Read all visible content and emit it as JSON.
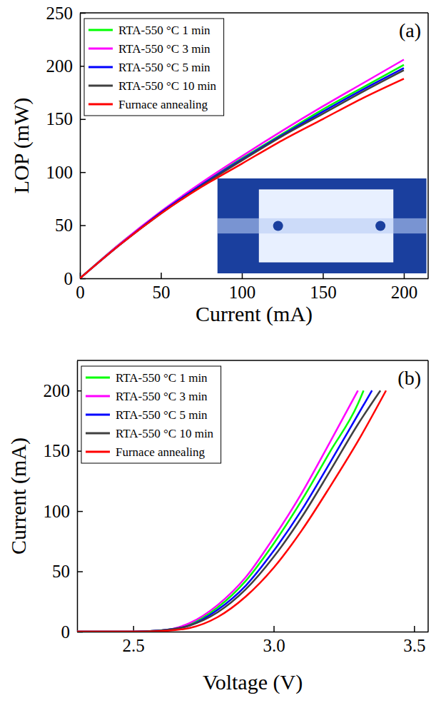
{
  "chart_data": [
    {
      "type": "line",
      "title": "(a)",
      "x_label": "Current (mA)",
      "y_label": "LOP (mW)",
      "x": [
        0,
        25,
        50,
        75,
        100,
        125,
        150,
        175,
        200
      ],
      "series": [
        {
          "name": "RTA-550 °C 1 min",
          "color": "#00ff00",
          "values": [
            0,
            33,
            62,
            89,
            113,
            136,
            159,
            180,
            201
          ]
        },
        {
          "name": "RTA-550 °C 3 min",
          "color": "#ff00ff",
          "values": [
            0,
            33,
            63,
            90,
            115,
            139,
            162,
            184,
            206
          ]
        },
        {
          "name": "RTA-550 °C 5 min",
          "color": "#0000ff",
          "values": [
            0,
            32,
            62,
            88,
            112,
            135,
            157,
            178,
            198
          ]
        },
        {
          "name": "RTA-550 °C 10 min",
          "color": "#404040",
          "values": [
            0,
            32,
            61,
            87,
            111,
            134,
            155,
            176,
            196
          ]
        },
        {
          "name": "Furnace annealing",
          "color": "#ff0000",
          "values": [
            0,
            32,
            61,
            86,
            108,
            130,
            150,
            170,
            188
          ]
        }
      ],
      "xlim": [
        0,
        215
      ],
      "xticks": [
        0,
        50,
        100,
        150,
        200
      ],
      "ylim": [
        0,
        250
      ],
      "yticks": [
        0,
        50,
        100,
        150,
        200,
        250
      ],
      "grid": false,
      "legend": "upper left"
    },
    {
      "type": "line",
      "title": "(b)",
      "x_label": "Voltage (V)",
      "y_label": "Current (mA)",
      "series": [
        {
          "name": "RTA-550 °C 1 min",
          "color": "#00ff00",
          "x": [
            2.3,
            2.5,
            2.6,
            2.7,
            2.8,
            2.9,
            3.0,
            3.1,
            3.2,
            3.3,
            3.32
          ],
          "values": [
            0,
            0,
            1,
            6,
            20,
            42,
            73,
            109,
            149,
            189,
            200
          ]
        },
        {
          "name": "RTA-550 °C 3 min",
          "color": "#ff00ff",
          "x": [
            2.3,
            2.5,
            2.6,
            2.7,
            2.8,
            2.9,
            3.0,
            3.1,
            3.2,
            3.3
          ],
          "values": [
            0,
            0,
            1,
            7,
            22,
            45,
            78,
            115,
            157,
            200
          ]
        },
        {
          "name": "RTA-550 °C 5 min",
          "color": "#0000ff",
          "x": [
            2.3,
            2.5,
            2.6,
            2.7,
            2.8,
            2.9,
            3.0,
            3.1,
            3.2,
            3.3,
            3.35
          ],
          "values": [
            0,
            0,
            1,
            5,
            18,
            38,
            67,
            101,
            140,
            180,
            200
          ]
        },
        {
          "name": "RTA-550 °C 10 min",
          "color": "#404040",
          "x": [
            2.3,
            2.5,
            2.6,
            2.7,
            2.8,
            2.9,
            3.0,
            3.1,
            3.2,
            3.3,
            3.38
          ],
          "values": [
            0,
            0,
            1,
            5,
            16,
            35,
            62,
            95,
            133,
            172,
            200
          ]
        },
        {
          "name": "Furnace annealing",
          "color": "#ff0000",
          "x": [
            2.3,
            2.5,
            2.6,
            2.7,
            2.8,
            2.9,
            3.0,
            3.1,
            3.2,
            3.3,
            3.4
          ],
          "values": [
            0,
            0,
            0.5,
            3,
            12,
            29,
            53,
            84,
            120,
            158,
            200
          ]
        }
      ],
      "xlim": [
        2.3,
        3.55
      ],
      "xticks": [
        2.5,
        {
          "value": 3,
          "label": "3.0"
        },
        3.5
      ],
      "ylim": [
        0,
        225
      ],
      "yticks": [
        0,
        50,
        100,
        150,
        200
      ],
      "grid": false,
      "legend": "upper left"
    }
  ]
}
